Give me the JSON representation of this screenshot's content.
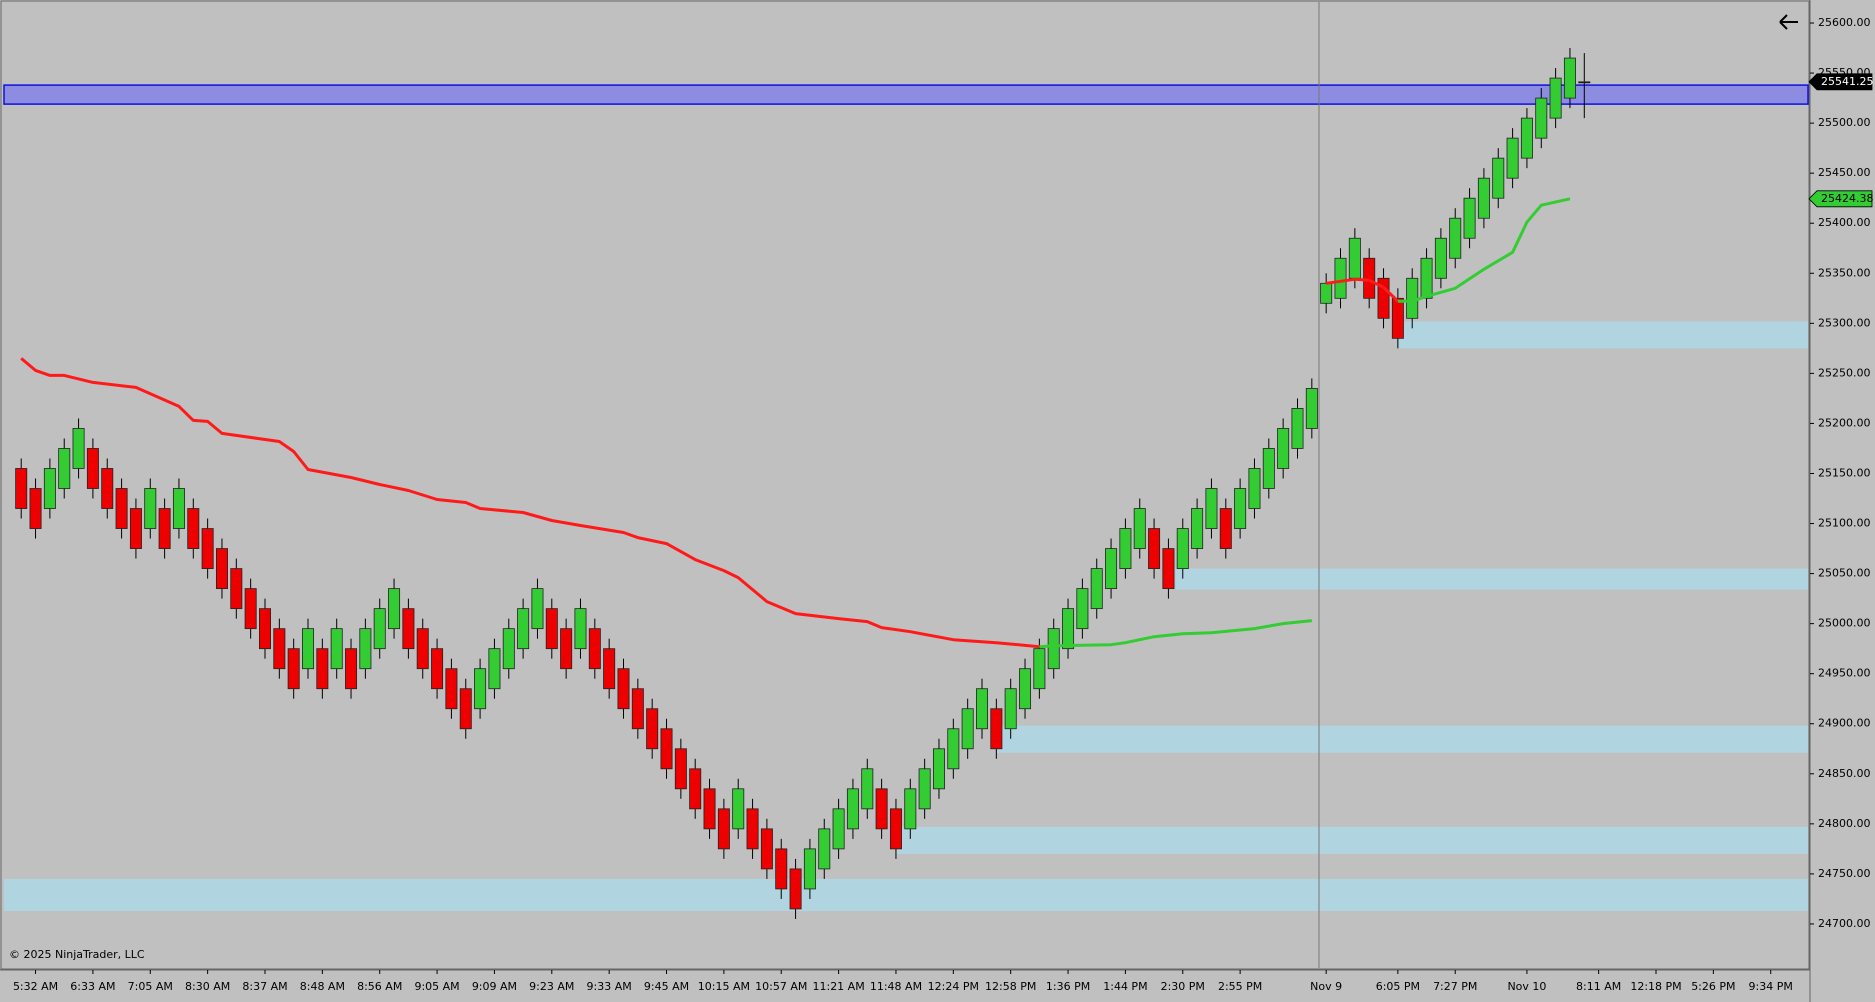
{
  "chart_data": {
    "type": "candlestick",
    "xlim": [
      -1.2,
      124.6
    ],
    "ylim": [
      24656,
      25621
    ],
    "yticks": [
      {
        "value": 24700,
        "label": "24700.00"
      },
      {
        "value": 24750,
        "label": "24750.00"
      },
      {
        "value": 24800,
        "label": "24800.00"
      },
      {
        "value": 24850,
        "label": "24850.00"
      },
      {
        "value": 24900,
        "label": "24900.00"
      },
      {
        "value": 24950,
        "label": "24950.00"
      },
      {
        "value": 25000,
        "label": "25000.00"
      },
      {
        "value": 25050,
        "label": "25050.00"
      },
      {
        "value": 25100,
        "label": "25100.00"
      },
      {
        "value": 25150,
        "label": "25150.00"
      },
      {
        "value": 25200,
        "label": "25200.00"
      },
      {
        "value": 25250,
        "label": "25250.00"
      },
      {
        "value": 25300,
        "label": "25300.00"
      },
      {
        "value": 25350,
        "label": "25350.00"
      },
      {
        "value": 25400,
        "label": "25400.00"
      },
      {
        "value": 25450,
        "label": "25450.00"
      },
      {
        "value": 25500,
        "label": "25500.00"
      },
      {
        "value": 25550,
        "label": "25550.00"
      },
      {
        "value": 25600,
        "label": "25600.00"
      }
    ],
    "xticks": [
      {
        "value": 1,
        "label": "5:32 AM"
      },
      {
        "value": 5,
        "label": "6:33 AM"
      },
      {
        "value": 9,
        "label": "7:05 AM"
      },
      {
        "value": 13,
        "label": "8:30 AM"
      },
      {
        "value": 17,
        "label": "8:37 AM"
      },
      {
        "value": 21,
        "label": "8:48 AM"
      },
      {
        "value": 25,
        "label": "8:56 AM"
      },
      {
        "value": 29,
        "label": "9:05 AM"
      },
      {
        "value": 33,
        "label": "9:09 AM"
      },
      {
        "value": 37,
        "label": "9:23 AM"
      },
      {
        "value": 41,
        "label": "9:33 AM"
      },
      {
        "value": 45,
        "label": "9:45 AM"
      },
      {
        "value": 49,
        "label": "10:15 AM"
      },
      {
        "value": 53,
        "label": "10:57 AM"
      },
      {
        "value": 57,
        "label": "11:21 AM"
      },
      {
        "value": 61,
        "label": "11:48 AM"
      },
      {
        "value": 65,
        "label": "12:24 PM"
      },
      {
        "value": 69,
        "label": "12:58 PM"
      },
      {
        "value": 73,
        "label": "1:36 PM"
      },
      {
        "value": 77,
        "label": "1:44 PM"
      },
      {
        "value": 81,
        "label": "2:30 PM"
      },
      {
        "value": 85,
        "label": "2:55 PM"
      },
      {
        "value": 91,
        "label": "Nov 9"
      },
      {
        "value": 96,
        "label": "6:05 PM"
      },
      {
        "value": 100,
        "label": "7:27 PM"
      },
      {
        "value": 105,
        "label": "Nov 10"
      },
      {
        "value": 110,
        "label": "8:11 AM"
      },
      {
        "value": 114,
        "label": "12:18 PM"
      },
      {
        "value": 118,
        "label": "5:26 PM"
      },
      {
        "value": 122,
        "label": "9:34 PM"
      }
    ],
    "up_color": "#33cc33",
    "down_color": "#ee0000",
    "open": [
      25155,
      25135,
      25115,
      25135,
      25155,
      25175,
      25155,
      25135,
      25115,
      25095,
      25115,
      25095,
      25115,
      25095,
      25075,
      25055,
      25035,
      25015,
      24995,
      24975,
      24955,
      24975,
      24955,
      24975,
      24955,
      24975,
      24995,
      25015,
      24995,
      24975,
      24955,
      24935,
      24915,
      24935,
      24955,
      24975,
      24995,
      25015,
      24995,
      24975,
      24995,
      24975,
      24955,
      24935,
      24915,
      24895,
      24875,
      24855,
      24835,
      24815,
      24795,
      24815,
      24795,
      24775,
      24755,
      24735,
      24755,
      24775,
      24795,
      24815,
      24835,
      24815,
      24795,
      24815,
      24835,
      24855,
      24875,
      24895,
      24915,
      24895,
      24915,
      24935,
      24955,
      24975,
      24995,
      25015,
      25035,
      25055,
      25075,
      25095,
      25075,
      25055,
      25075,
      25095,
      25115,
      25095,
      25115,
      25135,
      25155,
      25175,
      25195,
      25320,
      25325,
      25345,
      25365,
      25345,
      25325,
      25305,
      25325,
      25345,
      25365,
      25385,
      25405,
      25425,
      25445,
      25465,
      25485,
      25505,
      25525,
      25541.25
    ],
    "high": [
      25165,
      25145,
      25165,
      25185,
      25205,
      25185,
      25165,
      25145,
      25125,
      25145,
      25125,
      25145,
      25125,
      25105,
      25085,
      25065,
      25045,
      25025,
      25005,
      24985,
      25005,
      24985,
      25005,
      24985,
      25005,
      25025,
      25045,
      25025,
      25005,
      24985,
      24965,
      24945,
      24965,
      24985,
      25005,
      25025,
      25045,
      25025,
      25005,
      25025,
      25005,
      24985,
      24965,
      24945,
      24925,
      24905,
      24885,
      24865,
      24845,
      24825,
      24845,
      24825,
      24805,
      24785,
      24765,
      24785,
      24805,
      24825,
      24845,
      24865,
      24845,
      24825,
      24845,
      24865,
      24885,
      24905,
      24925,
      24945,
      24925,
      24945,
      24965,
      24985,
      25005,
      25025,
      25045,
      25065,
      25085,
      25105,
      25125,
      25105,
      25085,
      25105,
      25125,
      25145,
      25125,
      25145,
      25165,
      25185,
      25205,
      25225,
      25245,
      25350,
      25375,
      25395,
      25375,
      25355,
      25335,
      25355,
      25375,
      25395,
      25415,
      25435,
      25455,
      25475,
      25495,
      25515,
      25535,
      25555,
      25575,
      25570
    ],
    "low": [
      25105,
      25085,
      25105,
      25125,
      25145,
      25125,
      25105,
      25085,
      25065,
      25085,
      25065,
      25085,
      25065,
      25045,
      25025,
      25005,
      24985,
      24965,
      24945,
      24925,
      24945,
      24925,
      24945,
      24925,
      24945,
      24965,
      24985,
      24965,
      24945,
      24925,
      24905,
      24885,
      24905,
      24925,
      24945,
      24965,
      24985,
      24965,
      24945,
      24965,
      24945,
      24925,
      24905,
      24885,
      24865,
      24845,
      24825,
      24805,
      24785,
      24765,
      24785,
      24765,
      24745,
      24725,
      24705,
      24725,
      24745,
      24765,
      24785,
      24805,
      24785,
      24765,
      24785,
      24805,
      24825,
      24845,
      24865,
      24885,
      24865,
      24885,
      24905,
      24925,
      24945,
      24965,
      24985,
      25005,
      25025,
      25045,
      25065,
      25045,
      25025,
      25045,
      25065,
      25085,
      25065,
      25085,
      25105,
      25125,
      25145,
      25165,
      25185,
      25310,
      25315,
      25335,
      25315,
      25295,
      25275,
      25295,
      25315,
      25335,
      25355,
      25375,
      25395,
      25415,
      25435,
      25455,
      25475,
      25495,
      25515,
      25505
    ],
    "close": [
      25115,
      25095,
      25155,
      25175,
      25195,
      25135,
      25115,
      25095,
      25075,
      25135,
      25075,
      25135,
      25075,
      25055,
      25035,
      25015,
      24995,
      24975,
      24955,
      24935,
      24995,
      24935,
      24995,
      24935,
      24995,
      25015,
      25035,
      24975,
      24955,
      24935,
      24915,
      24895,
      24955,
      24975,
      24995,
      25015,
      25035,
      24975,
      24955,
      25015,
      24955,
      24935,
      24915,
      24895,
      24875,
      24855,
      24835,
      24815,
      24795,
      24775,
      24835,
      24775,
      24755,
      24735,
      24715,
      24775,
      24795,
      24815,
      24835,
      24855,
      24795,
      24775,
      24835,
      24855,
      24875,
      24895,
      24915,
      24935,
      24875,
      24935,
      24955,
      24975,
      24995,
      25015,
      25035,
      25055,
      25075,
      25095,
      25115,
      25055,
      25035,
      25095,
      25115,
      25135,
      25075,
      25135,
      25155,
      25175,
      25195,
      25215,
      25235,
      25340,
      25365,
      25385,
      25325,
      25305,
      25285,
      25345,
      25365,
      25385,
      25405,
      25425,
      25445,
      25465,
      25485,
      25505,
      25525,
      25545,
      25565,
      25541.25
    ],
    "lines": [
      {
        "color": "#ff1a1a",
        "x": [
          0,
          1,
          2,
          3,
          5,
          8,
          11,
          12,
          13,
          14,
          18,
          19,
          20,
          23,
          25,
          27,
          29,
          31,
          32,
          35,
          37,
          39,
          42,
          43,
          45,
          47,
          49,
          50,
          52,
          54,
          57,
          59,
          60,
          62,
          65,
          68,
          71
        ],
        "values": [
          25265,
          25253,
          25248,
          25248,
          25241,
          25236,
          25217,
          25203,
          25202,
          25190,
          25182,
          25172,
          25154,
          25146,
          25139,
          25133,
          25124,
          25121,
          25115,
          25111,
          25103,
          25098,
          25091,
          25086,
          25080,
          25064,
          25053,
          25046,
          25022,
          25010,
          25005,
          25002,
          24996,
          24992,
          24984,
          24981,
          24977
        ]
      },
      {
        "color": "#33cc33",
        "x": [
          71,
          72,
          76,
          77,
          79,
          81,
          83,
          86,
          88,
          90
        ],
        "values": [
          24977,
          24978,
          24979,
          24981,
          24987,
          24990,
          24991,
          24995,
          25000,
          25003
        ]
      },
      {
        "color": "#ff1a1a",
        "x": [
          91,
          93,
          94,
          95,
          96
        ],
        "values": [
          25340,
          25344,
          25343,
          25336,
          25322
        ]
      },
      {
        "color": "#33cc33",
        "x": [
          96,
          97,
          98,
          100,
          102,
          104,
          105,
          106,
          108
        ],
        "values": [
          25322,
          25322,
          25327,
          25335,
          25354,
          25371,
          25401,
          25418,
          25424.38
        ]
      }
    ],
    "zones": [
      {
        "start": -1.2,
        "top": 24745,
        "bottom": 24713
      },
      {
        "start": 61,
        "top": 24797,
        "bottom": 24770
      },
      {
        "start": 68,
        "top": 24898,
        "bottom": 24871
      },
      {
        "start": 80.5,
        "top": 25055,
        "bottom": 25034
      },
      {
        "start": 96,
        "top": 25302,
        "bottom": 25275
      }
    ],
    "zone_color": "#add8e6",
    "band": {
      "top": 25538,
      "bottom": 25519,
      "color": "#8c8ce0",
      "edge": "#1010e0"
    },
    "session_break": 90.5,
    "last_price": 25541.25,
    "ma_price": 25424.38,
    "copyright": "© 2025 NinjaTrader, LLC"
  }
}
